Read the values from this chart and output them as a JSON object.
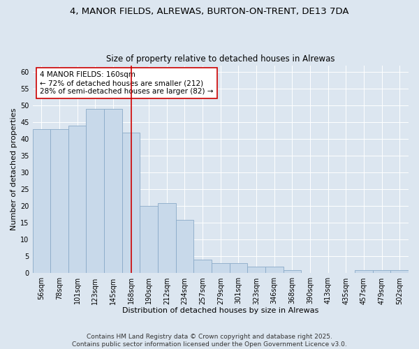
{
  "title_line1": "4, MANOR FIELDS, ALREWAS, BURTON-ON-TRENT, DE13 7DA",
  "title_line2": "Size of property relative to detached houses in Alrewas",
  "xlabel": "Distribution of detached houses by size in Alrewas",
  "ylabel": "Number of detached properties",
  "categories": [
    "56sqm",
    "78sqm",
    "101sqm",
    "123sqm",
    "145sqm",
    "168sqm",
    "190sqm",
    "212sqm",
    "234sqm",
    "257sqm",
    "279sqm",
    "301sqm",
    "323sqm",
    "346sqm",
    "368sqm",
    "390sqm",
    "413sqm",
    "435sqm",
    "457sqm",
    "479sqm",
    "502sqm"
  ],
  "values": [
    43,
    43,
    44,
    49,
    49,
    42,
    20,
    21,
    16,
    4,
    3,
    3,
    2,
    2,
    1,
    0,
    0,
    0,
    1,
    1,
    1
  ],
  "bar_color": "#c8d9ea",
  "bar_edge_color": "#8aaac8",
  "vline_x": 5.0,
  "vline_color": "#cc0000",
  "annotation_text": "4 MANOR FIELDS: 160sqm\n← 72% of detached houses are smaller (212)\n28% of semi-detached houses are larger (82) →",
  "annotation_box_facecolor": "#ffffff",
  "annotation_box_edgecolor": "#cc0000",
  "ylim": [
    0,
    62
  ],
  "yticks": [
    0,
    5,
    10,
    15,
    20,
    25,
    30,
    35,
    40,
    45,
    50,
    55,
    60
  ],
  "background_color": "#dce6f0",
  "footer_text": "Contains HM Land Registry data © Crown copyright and database right 2025.\nContains public sector information licensed under the Open Government Licence v3.0.",
  "title_fontsize": 9.5,
  "subtitle_fontsize": 8.5,
  "axis_label_fontsize": 8,
  "tick_fontsize": 7,
  "annotation_fontsize": 7.5,
  "footer_fontsize": 6.5
}
